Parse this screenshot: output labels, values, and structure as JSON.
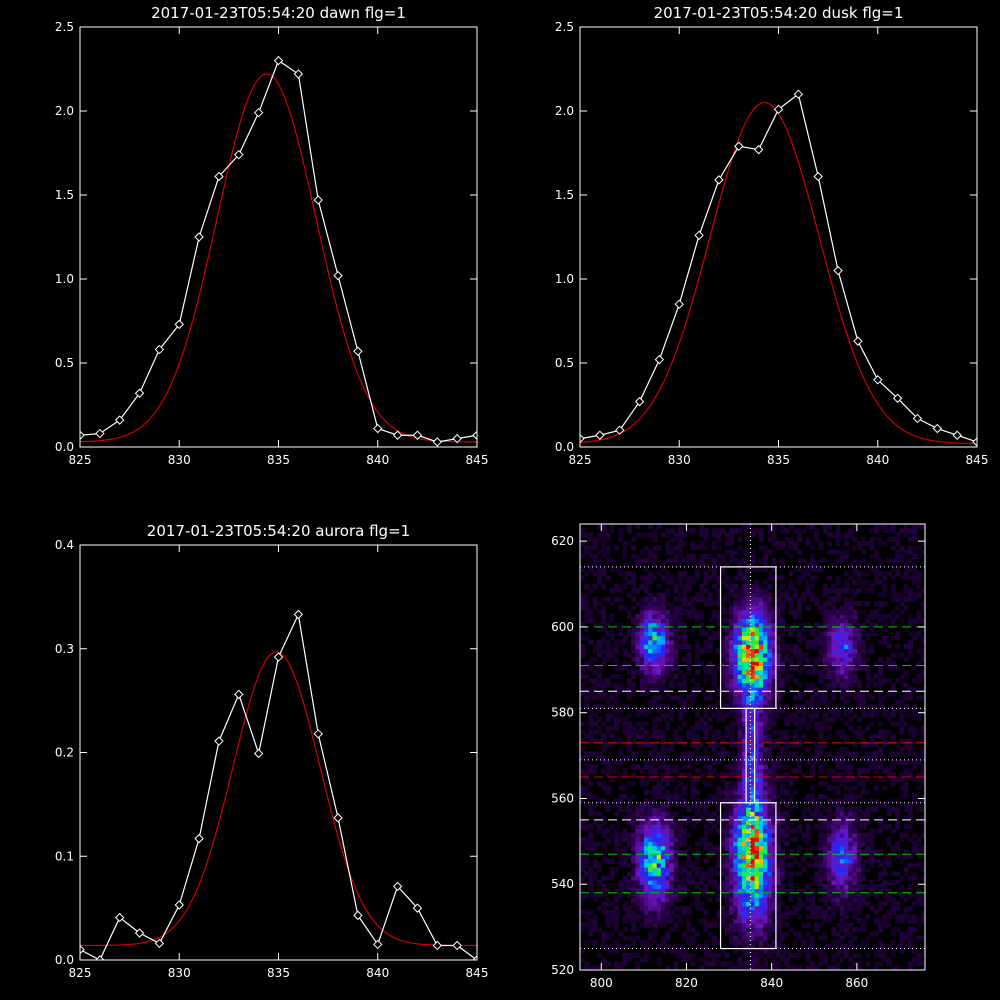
{
  "colors": {
    "background": "#000000",
    "axes": "#ffffff",
    "measured": "#ffffff",
    "fit": "#d00000",
    "guide_green": "#00c800",
    "guide_red": "#e00000",
    "guide_white": "#ffffff"
  },
  "chart_data": [
    {
      "type": "line",
      "title": "2017-01-23T05:54:20 dawn flg=1",
      "xlim": [
        825,
        845
      ],
      "ylim": [
        0,
        2.5
      ],
      "xticks": [
        825,
        830,
        835,
        840,
        845
      ],
      "yticks": [
        0.0,
        0.5,
        1.0,
        1.5,
        2.0,
        2.5
      ],
      "xtick_labels": [
        "825",
        "830",
        "835",
        "840",
        "845"
      ],
      "ytick_labels": [
        "0.0",
        "0.5",
        "1.0",
        "1.5",
        "2.0",
        "2.5"
      ],
      "series": [
        {
          "role": "measured",
          "marker": "diamond",
          "x": [
            825,
            826,
            827,
            828,
            829,
            830,
            831,
            832,
            833,
            834,
            835,
            836,
            837,
            838,
            839,
            840,
            841,
            842,
            843,
            844,
            845
          ],
          "y": [
            0.07,
            0.08,
            0.16,
            0.32,
            0.58,
            0.73,
            1.25,
            1.61,
            1.74,
            1.99,
            2.3,
            2.22,
            1.47,
            1.02,
            0.57,
            0.11,
            0.07,
            0.07,
            0.03,
            0.05,
            0.07
          ]
        },
        {
          "role": "fit",
          "model": "gaussian",
          "amplitude": 2.19,
          "center": 834.4,
          "sigma": 2.5,
          "offset": 0.03
        }
      ]
    },
    {
      "type": "line",
      "title": "2017-01-23T05:54:20 dusk flg=1",
      "xlim": [
        825,
        845
      ],
      "ylim": [
        0,
        2.5
      ],
      "xticks": [
        825,
        830,
        835,
        840,
        845
      ],
      "yticks": [
        0.0,
        0.5,
        1.0,
        1.5,
        2.0,
        2.5
      ],
      "xtick_labels": [
        "825",
        "830",
        "835",
        "840",
        "845"
      ],
      "ytick_labels": [
        "0.0",
        "0.5",
        "1.0",
        "1.5",
        "2.0",
        "2.5"
      ],
      "series": [
        {
          "role": "measured",
          "marker": "diamond",
          "x": [
            825,
            826,
            827,
            828,
            829,
            830,
            831,
            832,
            833,
            834,
            835,
            836,
            837,
            838,
            839,
            840,
            841,
            842,
            843,
            844,
            845
          ],
          "y": [
            0.05,
            0.07,
            0.1,
            0.27,
            0.52,
            0.85,
            1.26,
            1.59,
            1.79,
            1.77,
            2.01,
            2.1,
            1.61,
            1.05,
            0.63,
            0.4,
            0.29,
            0.17,
            0.11,
            0.07,
            0.03
          ]
        },
        {
          "role": "fit",
          "model": "gaussian",
          "amplitude": 2.03,
          "center": 834.3,
          "sigma": 2.75,
          "offset": 0.02
        }
      ]
    },
    {
      "type": "line",
      "title": "2017-01-23T05:54:20 aurora flg=1",
      "xlim": [
        825,
        845
      ],
      "ylim": [
        0,
        0.4
      ],
      "xticks": [
        825,
        830,
        835,
        840,
        845
      ],
      "yticks": [
        0.0,
        0.1,
        0.2,
        0.3,
        0.4
      ],
      "xtick_labels": [
        "825",
        "830",
        "835",
        "840",
        "845"
      ],
      "ytick_labels": [
        "0.0",
        "0.1",
        "0.2",
        "0.3",
        "0.4"
      ],
      "series": [
        {
          "role": "measured",
          "marker": "diamond",
          "x": [
            825,
            826,
            827,
            828,
            829,
            830,
            831,
            832,
            833,
            834,
            835,
            836,
            837,
            838,
            839,
            840,
            841,
            842,
            843,
            844,
            845
          ],
          "y": [
            0.01,
            0.0,
            0.041,
            0.026,
            0.016,
            0.053,
            0.117,
            0.211,
            0.256,
            0.199,
            0.292,
            0.333,
            0.218,
            0.137,
            0.043,
            0.015,
            0.071,
            0.05,
            0.014,
            0.014,
            0.0
          ]
        },
        {
          "role": "fit",
          "model": "gaussian",
          "amplitude": 0.283,
          "center": 834.9,
          "sigma": 2.2,
          "offset": 0.014
        }
      ]
    },
    {
      "type": "heatmap",
      "colormap": "rainbow",
      "xlim": [
        795,
        876
      ],
      "ylim": [
        520,
        624
      ],
      "xticks": [
        800,
        820,
        840,
        860
      ],
      "yticks": [
        520,
        540,
        560,
        580,
        600,
        620
      ],
      "xtick_labels": [
        "800",
        "820",
        "840",
        "860"
      ],
      "ytick_labels": [
        "520",
        "540",
        "560",
        "580",
        "600",
        "620"
      ],
      "blobs": [
        {
          "x": 812,
          "y": 596,
          "sx": 2.3,
          "sy": 4.5,
          "amp": 0.55
        },
        {
          "x": 812,
          "y": 545,
          "sx": 2.5,
          "sy": 6.0,
          "amp": 0.65
        },
        {
          "x": 835,
          "y": 593,
          "sx": 2.8,
          "sy": 6.5,
          "amp": 0.95
        },
        {
          "x": 835,
          "y": 546,
          "sx": 2.8,
          "sy": 9.0,
          "amp": 0.95
        },
        {
          "x": 835,
          "y": 570,
          "sx": 1.6,
          "sy": 11.0,
          "amp": 0.3
        },
        {
          "x": 856,
          "y": 595,
          "sx": 2.3,
          "sy": 4.5,
          "amp": 0.35
        },
        {
          "x": 856,
          "y": 546,
          "sx": 2.3,
          "sy": 5.5,
          "amp": 0.38
        }
      ],
      "boxes": [
        {
          "x0": 828,
          "x1": 841,
          "y0": 581,
          "y1": 614
        },
        {
          "x0": 828,
          "x1": 841,
          "y0": 525,
          "y1": 559
        },
        {
          "x0": 834,
          "x1": 836,
          "y0": 559,
          "y1": 581
        }
      ],
      "vline": {
        "x": 835,
        "style": "dotted"
      },
      "hlines": [
        {
          "y": 614,
          "style": "dotted",
          "color": "guide_white"
        },
        {
          "y": 600,
          "style": "dashed",
          "color": "guide_green"
        },
        {
          "y": 591,
          "style": "dashed",
          "color": "guide_green"
        },
        {
          "y": 585,
          "style": "dashed",
          "color": "guide_white"
        },
        {
          "y": 581,
          "style": "dotted",
          "color": "guide_white"
        },
        {
          "y": 573,
          "style": "dashed",
          "color": "guide_red"
        },
        {
          "y": 569,
          "style": "dotted",
          "color": "guide_white"
        },
        {
          "y": 565,
          "style": "dashed",
          "color": "guide_red"
        },
        {
          "y": 559,
          "style": "dotted",
          "color": "guide_white"
        },
        {
          "y": 555,
          "style": "dashed",
          "color": "guide_white"
        },
        {
          "y": 547,
          "style": "dashed",
          "color": "guide_green"
        },
        {
          "y": 538,
          "style": "dashed",
          "color": "guide_green"
        },
        {
          "y": 525,
          "style": "dotted",
          "color": "guide_white"
        }
      ]
    }
  ]
}
